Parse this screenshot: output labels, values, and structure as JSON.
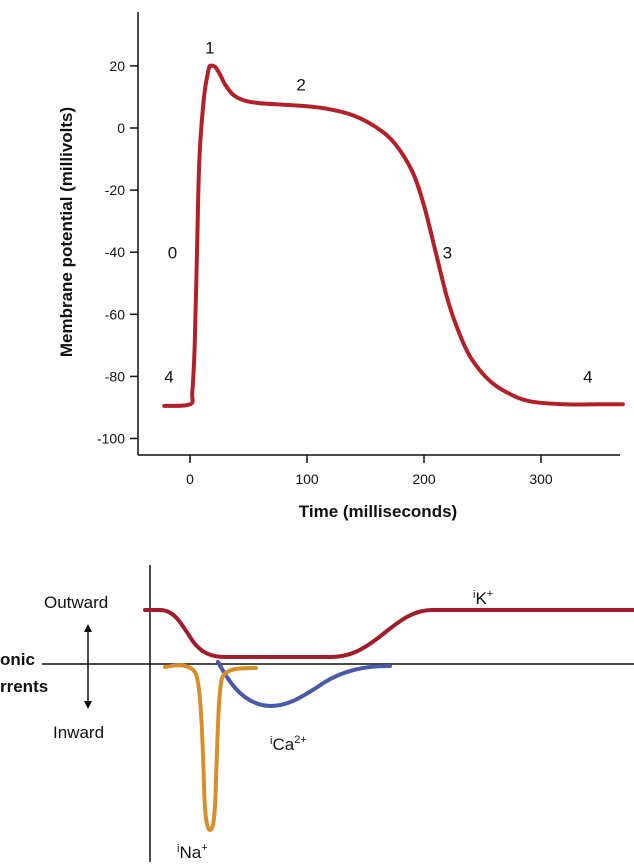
{
  "chart_data": [
    {
      "type": "line",
      "xlabel": "Time (milliseconds)",
      "ylabel": "Membrane potential (millivolts)",
      "xlim": [
        -25,
        370
      ],
      "ylim": [
        -105,
        38
      ],
      "xticks": [
        0,
        100,
        200,
        300
      ],
      "yticks": [
        20,
        0,
        -20,
        -40,
        -60,
        -80,
        -100
      ],
      "series": [
        {
          "color": "#b4202a",
          "x": [
            -22,
            0,
            2,
            4,
            6,
            8,
            12,
            16,
            18,
            20,
            22,
            26,
            30,
            36,
            42,
            50,
            60,
            80,
            100,
            120,
            140,
            160,
            175,
            190,
            200,
            210,
            220,
            230,
            240,
            255,
            270,
            290,
            320,
            350,
            370
          ],
          "y": [
            -89.5,
            -89,
            -85,
            -70,
            -40,
            -10,
            10,
            19,
            20,
            20,
            19.5,
            17,
            14,
            11,
            9.5,
            8.5,
            8,
            7.5,
            7,
            6,
            4,
            0,
            -5,
            -14,
            -25,
            -40,
            -55,
            -66,
            -74,
            -81,
            -85,
            -88,
            -89,
            -89,
            -89
          ]
        }
      ],
      "annotations": [
        {
          "text": "1",
          "x": 17,
          "y": 24
        },
        {
          "text": "2",
          "x": 95,
          "y": 12
        },
        {
          "text": "0",
          "x": -15,
          "y": -42
        },
        {
          "text": "3",
          "x": 220,
          "y": -42
        },
        {
          "text": "4",
          "x": -18,
          "y": -82
        },
        {
          "text": "4",
          "x": 340,
          "y": -82
        }
      ]
    },
    {
      "type": "line",
      "labels": {
        "outward": "Outward",
        "inward": "Inward",
        "ionic_line1": "onic",
        "ionic_line2": "rrents"
      },
      "series": [
        {
          "name": "iK+",
          "base": "i",
          "ion": "K",
          "charge": "+",
          "color": "#a11d2a"
        },
        {
          "name": "iCa2+",
          "base": "i",
          "ion": "Ca",
          "charge": "2+",
          "color": "#4a5aa8"
        },
        {
          "name": "iNa+",
          "base": "i",
          "ion": "Na",
          "charge": "+",
          "color": "#d78f2b"
        }
      ]
    }
  ]
}
